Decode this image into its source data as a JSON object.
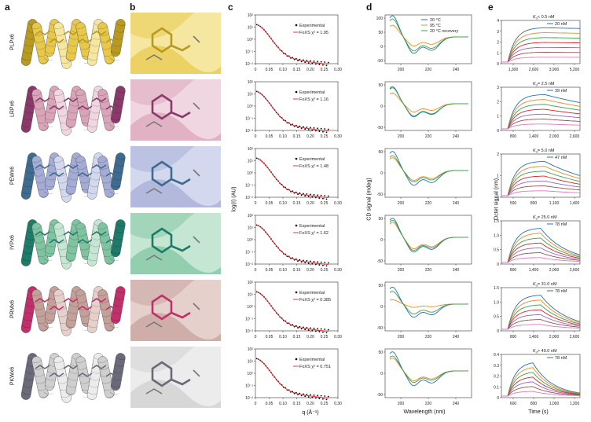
{
  "panels": [
    "a",
    "b",
    "c",
    "d",
    "e"
  ],
  "proteins": [
    {
      "name": "PLPx6",
      "color": "#e8c84a",
      "dark": "#b89a20",
      "light": "#f5e6a0"
    },
    {
      "name": "LRPx6",
      "color": "#d9a3b8",
      "dark": "#8a3a6a",
      "light": "#f0d6e0"
    },
    {
      "name": "PEWx6",
      "color": "#a4acd6",
      "dark": "#3f6b8f",
      "light": "#d4d8ee"
    },
    {
      "name": "IYPx6",
      "color": "#7fc4a0",
      "dark": "#1f7a6a",
      "light": "#c4e6d2"
    },
    {
      "name": "PRMx6",
      "color": "#c4a09a",
      "dark": "#c0306a",
      "light": "#e6d0cc"
    },
    {
      "name": "PKWx6",
      "color": "#cfcfcf",
      "dark": "#6a6a7a",
      "light": "#ececec"
    }
  ],
  "saxs": {
    "legend_exp": "Experimental",
    "chi2": [
      "1.95",
      "1.16",
      "1.48",
      "1.62",
      "0.385",
      "0.751"
    ],
    "foxs_prefix": "FoXS χ² = ",
    "ylabel": "log(I) (AU)",
    "xlabel": "q (Å⁻¹)",
    "xticks": [
      "0",
      "0.05",
      "0.10",
      "0.15",
      "0.20",
      "0.25",
      "0.30"
    ],
    "yticks": [
      "10²",
      "10¹",
      "10⁰",
      "10⁻¹",
      "10⁻²"
    ]
  },
  "cd": {
    "ylabel": "CD signal (mdeg)",
    "xlabel": "Wavelength (nm)",
    "xticks": [
      "200",
      "220",
      "240"
    ],
    "legend": [
      "20 °C",
      "95 °C",
      "20 °C recovery"
    ],
    "colors": {
      "c20": "#2a6fb0",
      "c95": "#f08a24",
      "crec": "#3aa14a"
    },
    "yticks": [
      [
        "100",
        "50",
        "0",
        "-50"
      ],
      [
        "50",
        "0",
        "-50"
      ],
      [
        "50",
        "0",
        "-50"
      ],
      [
        "50",
        "0",
        "-50"
      ],
      [
        "50",
        "0",
        "-50"
      ],
      [
        "50",
        "0",
        "-50"
      ]
    ]
  },
  "octet": {
    "ylabel": "Octet signal (nm)",
    "xlabel": "Time (s)",
    "rows": [
      {
        "kd": "< 0.5 nM",
        "conc": "20 nM",
        "yticks": [
          "4",
          "3",
          "2",
          "1",
          "0"
        ],
        "xticks": [
          "1,300",
          "2,600",
          "3,900",
          "5,200"
        ]
      },
      {
        "kd": "= 2.5 nM",
        "conc": "39 nM",
        "yticks": [
          "3",
          "2",
          "1",
          "0"
        ],
        "xticks": [
          "800",
          "1,400",
          "2,000",
          "2,600"
        ]
      },
      {
        "kd": "= 5.0 nM",
        "conc": "47 nM",
        "yticks": [
          "2",
          "1",
          "0"
        ],
        "xticks": [
          "500",
          "800",
          "1,100",
          "1,400"
        ]
      },
      {
        "kd": "= 25.0 nM",
        "conc": "78 nM",
        "yticks": [
          "1.5",
          "1.0",
          "0.5",
          "0"
        ],
        "xticks": [
          "800",
          "1,400",
          "2,000",
          "2,600"
        ]
      },
      {
        "kd": "= 31.0 nM",
        "conc": "78 nM",
        "yticks": [
          "1.5",
          "1.0",
          "0.5",
          "0"
        ],
        "xticks": [
          "800",
          "1,400",
          "2,000",
          "2,600"
        ]
      },
      {
        "kd": "> 40.0 nM",
        "conc": "78 nM",
        "yticks": [
          "0.4",
          "0.3",
          "0.2",
          "0.1",
          "0"
        ],
        "xticks": [
          "600",
          "800",
          "1,000",
          "1,200"
        ]
      }
    ],
    "curve_colors": [
      "#2a6fb0",
      "#f08a24",
      "#3aa14a",
      "#d62728",
      "#9467bd",
      "#8c564b",
      "#e377c2",
      "#7f7f7f"
    ]
  }
}
